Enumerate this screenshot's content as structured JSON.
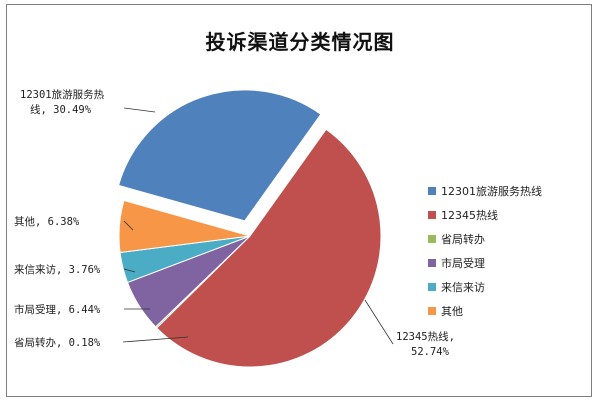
{
  "chart_data": {
    "type": "pie",
    "title": "投诉渠道分类情况图",
    "slices": [
      {
        "name": "12301旅游服务热线",
        "value": 30.49,
        "label": "12301旅游服务热\n线, 30.49%",
        "color": "#4f81bd",
        "exploded": true
      },
      {
        "name": "12345热线",
        "value": 52.74,
        "label": "12345热线,\n52.74%",
        "color": "#c0504d",
        "exploded": false
      },
      {
        "name": "省局转办",
        "value": 0.18,
        "label": "省局转办, 0.18%",
        "color": "#9bbb59",
        "exploded": false
      },
      {
        "name": "市局受理",
        "value": 6.44,
        "label": "市局受理, 6.44%",
        "color": "#8064a2",
        "exploded": false
      },
      {
        "name": "来信来访",
        "value": 3.76,
        "label": "来信来访, 3.76%",
        "color": "#4bacc6",
        "exploded": false
      },
      {
        "name": "其他",
        "value": 6.38,
        "label": "其他, 6.38%",
        "color": "#f79646",
        "exploded": false
      }
    ],
    "legend_position": "right"
  }
}
